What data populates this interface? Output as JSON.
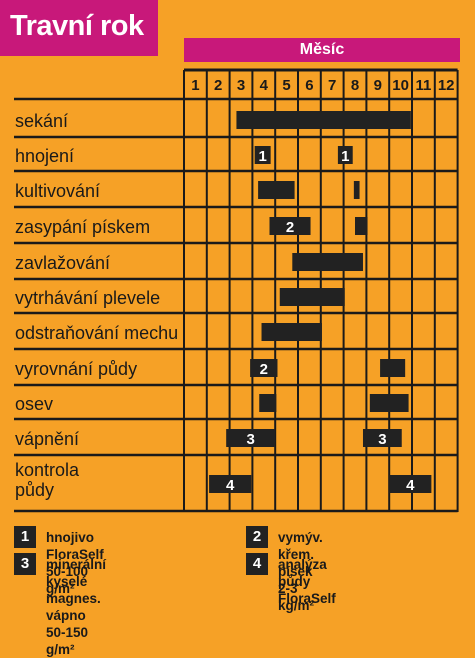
{
  "title": "Travní rok",
  "month_header": "Měsíc",
  "colors": {
    "background": "#f6a126",
    "accent": "#c8187a",
    "bar": "#222222",
    "line": "#1a1a1a"
  },
  "chart_data": {
    "type": "gantt",
    "x_axis": {
      "label": "Měsíc",
      "ticks": [
        "1",
        "2",
        "3",
        "4",
        "5",
        "6",
        "7",
        "8",
        "9",
        "10",
        "11",
        "12"
      ]
    },
    "rows": [
      {
        "label": "sekání",
        "bars": [
          {
            "start": 3.3,
            "end": 10.95
          }
        ]
      },
      {
        "label": "hnojení",
        "bars": [
          {
            "start": 4.1,
            "end": 4.8,
            "tag": "1"
          },
          {
            "start": 7.75,
            "end": 8.4,
            "tag": "1"
          }
        ]
      },
      {
        "label": "kultivování",
        "bars": [
          {
            "start": 4.25,
            "end": 5.85
          },
          {
            "start": 8.45,
            "end": 8.7
          }
        ]
      },
      {
        "label": "zasypání pískem",
        "bars": [
          {
            "start": 4.75,
            "end": 6.55,
            "tag": "2"
          },
          {
            "start": 8.5,
            "end": 9.05
          }
        ]
      },
      {
        "label": "zavlažování",
        "bars": [
          {
            "start": 5.75,
            "end": 8.85
          }
        ]
      },
      {
        "label": "vytrhávání plevele",
        "bars": [
          {
            "start": 5.2,
            "end": 8.05
          }
        ]
      },
      {
        "label": "odstraňování mechu",
        "bars": [
          {
            "start": 4.4,
            "end": 7.05
          }
        ]
      },
      {
        "label": "vyrovnání půdy",
        "bars": [
          {
            "start": 3.9,
            "end": 5.1,
            "tag": "2"
          },
          {
            "start": 9.6,
            "end": 10.7
          }
        ]
      },
      {
        "label": "osev",
        "bars": [
          {
            "start": 4.3,
            "end": 5.05
          },
          {
            "start": 9.15,
            "end": 10.85
          }
        ]
      },
      {
        "label": "vápnění",
        "bars": [
          {
            "start": 2.85,
            "end": 5.0,
            "tag": "3"
          },
          {
            "start": 8.85,
            "end": 10.55,
            "tag": "3"
          }
        ]
      },
      {
        "label": "kontrola\npůdy",
        "bars": [
          {
            "start": 2.1,
            "end": 3.95,
            "tag": "4"
          },
          {
            "start": 10.0,
            "end": 11.85,
            "tag": "4"
          }
        ]
      }
    ]
  },
  "legend": [
    {
      "num": "1",
      "text": "hnojivo FloraSelf 50-100 g/m²"
    },
    {
      "num": "2",
      "text": "vymýv. křem. písek 2-3 kg/m²"
    },
    {
      "num": "3",
      "text": "minerální kyselé magnes.\nvápno 50-150 g/m²"
    },
    {
      "num": "4",
      "text": "analýza půdy FloraSelf"
    }
  ]
}
